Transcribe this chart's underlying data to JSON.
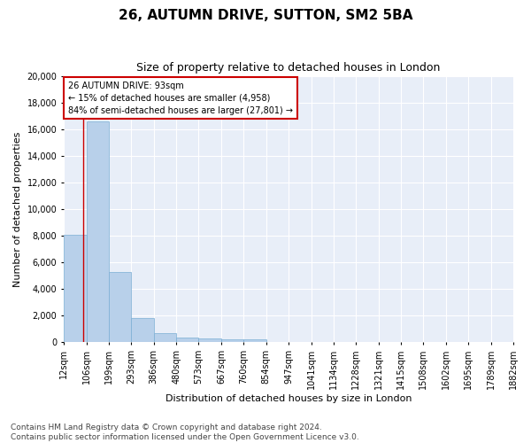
{
  "title": "26, AUTUMN DRIVE, SUTTON, SM2 5BA",
  "subtitle": "Size of property relative to detached houses in London",
  "xlabel": "Distribution of detached houses by size in London",
  "ylabel": "Number of detached properties",
  "bar_color": "#b8d0ea",
  "bar_edge_color": "#7aaed4",
  "annotation_line_color": "#cc0000",
  "annotation_box_color": "#cc0000",
  "annotation_line1": "26 AUTUMN DRIVE: 93sqm",
  "annotation_line2": "← 15% of detached houses are smaller (4,958)",
  "annotation_line3": "84% of semi-detached houses are larger (27,801) →",
  "property_sqm": 93,
  "bin_edges": [
    12,
    106,
    199,
    293,
    386,
    480,
    573,
    667,
    760,
    854,
    947,
    1041,
    1134,
    1228,
    1321,
    1415,
    1508,
    1602,
    1695,
    1789,
    1882
  ],
  "bar_heights": [
    8100,
    16600,
    5300,
    1800,
    700,
    350,
    270,
    220,
    200,
    0,
    0,
    0,
    0,
    0,
    0,
    0,
    0,
    0,
    0,
    0
  ],
  "ylim": [
    0,
    20000
  ],
  "yticks": [
    0,
    2000,
    4000,
    6000,
    8000,
    10000,
    12000,
    14000,
    16000,
    18000,
    20000
  ],
  "footer_text": "Contains HM Land Registry data © Crown copyright and database right 2024.\nContains public sector information licensed under the Open Government Licence v3.0.",
  "background_color": "#e8eef8",
  "title_fontsize": 11,
  "subtitle_fontsize": 9,
  "axis_label_fontsize": 8,
  "tick_fontsize": 7,
  "footer_fontsize": 6.5
}
